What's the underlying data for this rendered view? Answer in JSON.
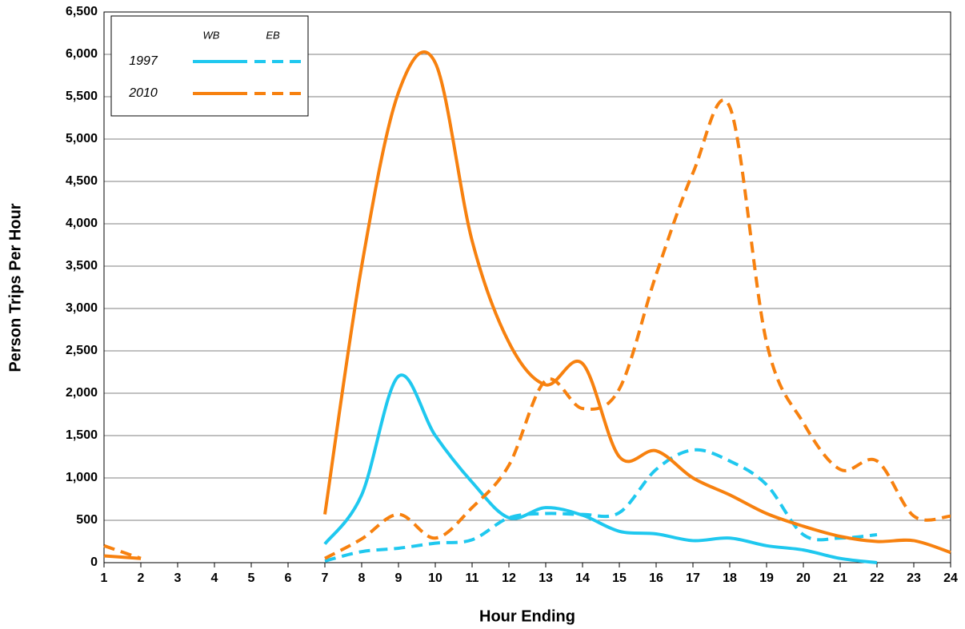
{
  "chart_data": {
    "type": "line",
    "x_label": "Hour Ending",
    "y_label": "Person Trips Per Hour",
    "x": [
      1,
      2,
      3,
      4,
      5,
      6,
      7,
      8,
      9,
      10,
      11,
      12,
      13,
      14,
      15,
      16,
      17,
      18,
      19,
      20,
      21,
      22,
      23,
      24
    ],
    "xlim": [
      1,
      24
    ],
    "xticks": [
      1,
      2,
      3,
      4,
      5,
      6,
      7,
      8,
      9,
      10,
      11,
      12,
      13,
      14,
      15,
      16,
      17,
      18,
      19,
      20,
      21,
      22,
      23,
      24
    ],
    "ylim": [
      0,
      6500
    ],
    "yticks": [
      0,
      500,
      {
        "value": 1000,
        "label": "1,000"
      },
      {
        "value": 1500,
        "label": "1,500"
      },
      {
        "value": 2000,
        "label": "2,000"
      },
      {
        "value": 2500,
        "label": "2,500"
      },
      {
        "value": 3000,
        "label": "3,000"
      },
      {
        "value": 3500,
        "label": "3,500"
      },
      {
        "value": 4000,
        "label": "4,000"
      },
      {
        "value": 4500,
        "label": "4,500"
      },
      {
        "value": 5000,
        "label": "5,000"
      },
      {
        "value": 5500,
        "label": "5,500"
      },
      {
        "value": 6000,
        "label": "6,000"
      },
      {
        "value": 6500,
        "label": "6,500"
      }
    ],
    "grid": true,
    "legend_position": "upper left",
    "series": [
      {
        "name": "1997",
        "direction": "WB",
        "color": "#1fc8ef",
        "dashed": false,
        "values": [
          null,
          null,
          null,
          null,
          null,
          null,
          220,
          800,
          2200,
          1500,
          950,
          530,
          650,
          560,
          370,
          340,
          260,
          290,
          200,
          150,
          50,
          0,
          null,
          null
        ]
      },
      {
        "name": "1997",
        "direction": "EB",
        "color": "#1fc8ef",
        "dashed": true,
        "values": [
          null,
          null,
          null,
          null,
          null,
          null,
          20,
          130,
          170,
          230,
          270,
          530,
          580,
          570,
          590,
          1100,
          1330,
          1200,
          920,
          330,
          290,
          330,
          null,
          null
        ]
      },
      {
        "name": "2010",
        "direction": "WB",
        "color": "#f7810f",
        "dashed": false,
        "values": [
          80,
          50,
          null,
          null,
          null,
          null,
          570,
          3500,
          5550,
          5900,
          3800,
          2600,
          2100,
          2350,
          1250,
          1320,
          1000,
          800,
          580,
          430,
          310,
          250,
          260,
          120
        ]
      },
      {
        "name": "2010",
        "direction": "EB",
        "color": "#f7810f",
        "dashed": true,
        "values": [
          200,
          50,
          null,
          null,
          null,
          null,
          50,
          280,
          570,
          290,
          650,
          1150,
          2150,
          1820,
          2050,
          3400,
          4600,
          5380,
          2600,
          1650,
          1100,
          1200,
          550,
          550
        ]
      }
    ]
  }
}
